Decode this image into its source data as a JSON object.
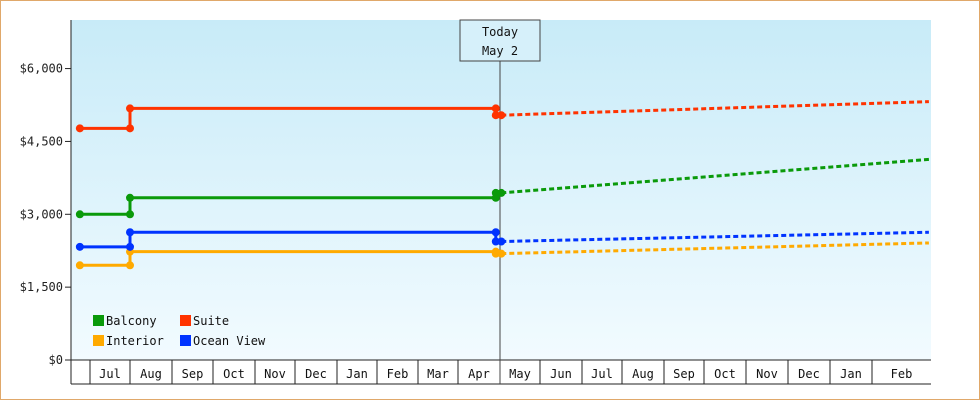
{
  "chart_data": {
    "type": "line",
    "y_axis": {
      "ticks": [
        0,
        1500,
        3000,
        4500,
        6000
      ],
      "tick_labels": [
        "$0",
        "$1,500",
        "$3,000",
        "$4,500",
        "$6,000"
      ],
      "ylim": [
        0,
        7000
      ]
    },
    "x_axis": {
      "tick_labels": [
        "Jul",
        "Aug",
        "Sep",
        "Oct",
        "Nov",
        "Dec",
        "Jan",
        "Feb",
        "Mar",
        "Apr",
        "May",
        "Jun",
        "Jul",
        "Aug",
        "Sep",
        "Oct",
        "Nov",
        "Dec",
        "Jan",
        "Feb"
      ]
    },
    "today_marker": {
      "line1": "Today",
      "line2": "May 2"
    },
    "grid": false,
    "legend_placement": "bottom-left",
    "series": [
      {
        "name": "Balcony",
        "color": "#0a9a0a",
        "history": [
          [
            "Jun 15",
            3000
          ],
          [
            "Aug 1",
            3000
          ],
          [
            "Aug 1",
            3340
          ],
          [
            "Apr 28",
            3340
          ],
          [
            "Apr 28",
            3440
          ],
          [
            "May 2",
            3440
          ]
        ],
        "forecast": [
          [
            "May 2",
            3440
          ],
          [
            "Feb 28",
            4130
          ]
        ]
      },
      {
        "name": "Suite",
        "color": "#ff3300",
        "history": [
          [
            "Jun 15",
            4770
          ],
          [
            "Aug 1",
            4770
          ],
          [
            "Aug 1",
            5180
          ],
          [
            "Apr 28",
            5180
          ],
          [
            "Apr 28",
            5040
          ],
          [
            "May 2",
            5040
          ]
        ],
        "forecast": [
          [
            "May 2",
            5040
          ],
          [
            "Feb 28",
            5320
          ]
        ]
      },
      {
        "name": "Interior",
        "color": "#ffaa00",
        "history": [
          [
            "Jun 15",
            1950
          ],
          [
            "Aug 1",
            1950
          ],
          [
            "Aug 1",
            2230
          ],
          [
            "Apr 28",
            2230
          ],
          [
            "Apr 28",
            2190
          ],
          [
            "May 2",
            2190
          ]
        ],
        "forecast": [
          [
            "May 2",
            2190
          ],
          [
            "Feb 28",
            2410
          ]
        ]
      },
      {
        "name": "Ocean View",
        "color": "#0033ff",
        "history": [
          [
            "Jun 15",
            2330
          ],
          [
            "Aug 1",
            2330
          ],
          [
            "Aug 1",
            2630
          ],
          [
            "Apr 28",
            2630
          ],
          [
            "Apr 28",
            2440
          ],
          [
            "May 2",
            2440
          ]
        ],
        "forecast": [
          [
            "May 2",
            2440
          ],
          [
            "Feb 28",
            2630
          ]
        ]
      }
    ]
  }
}
